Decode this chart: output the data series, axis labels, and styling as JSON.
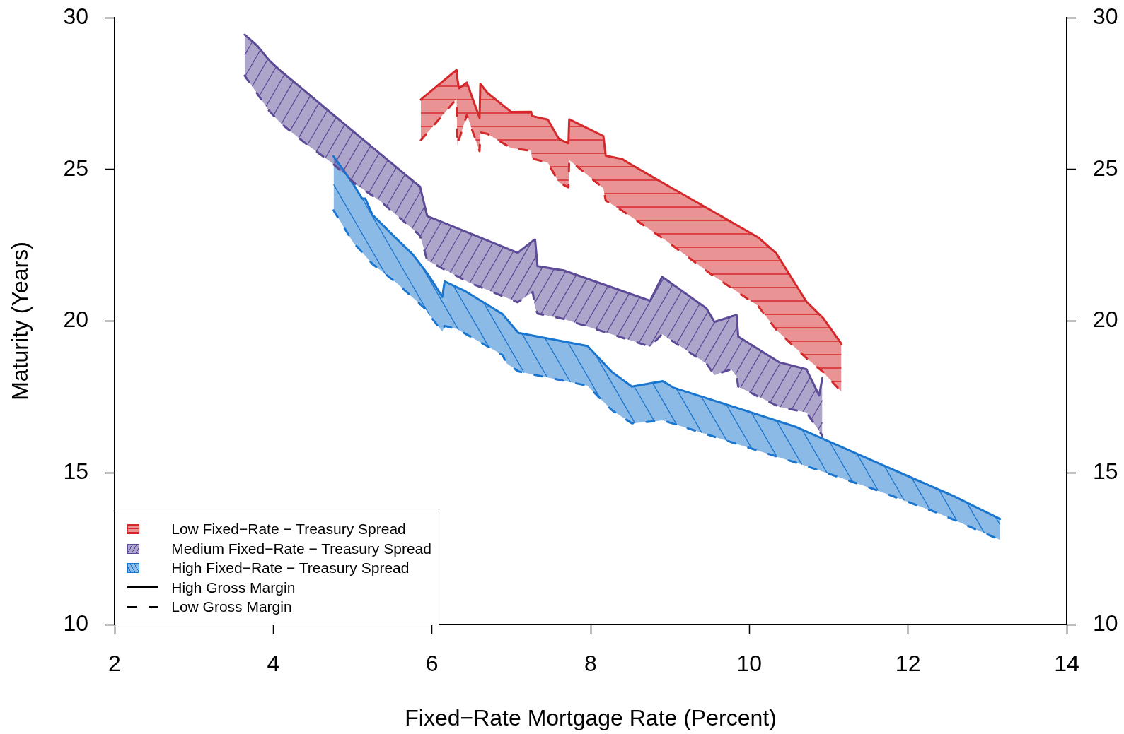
{
  "chart_data": {
    "type": "line",
    "xlabel": "Fixed−Rate Mortgage Rate (Percent)",
    "ylabel": "Maturity (Years)",
    "xlim": [
      2,
      14
    ],
    "xticks": [
      2,
      4,
      6,
      8,
      10,
      12,
      14
    ],
    "ylim": [
      10,
      30
    ],
    "yticks": [
      10,
      15,
      20,
      25,
      30
    ],
    "y2lim": [
      10,
      30
    ],
    "y2ticks": [
      10,
      15,
      20,
      25,
      30
    ],
    "legend": "bottom left",
    "marker": "none",
    "series": [
      {
        "name": "Low Fixed−Rate − Treasury Spread",
        "color": "#d5282b",
        "line_style": "solid",
        "x": [
          5.86,
          6.31,
          6.32,
          6.34,
          6.44,
          6.6,
          6.61,
          6.7,
          7.0,
          7.25,
          7.26,
          7.46,
          7.6,
          7.72,
          7.73,
          8.16,
          8.19,
          8.4,
          8.47,
          8.94,
          9.51,
          10.11,
          10.34,
          10.72,
          10.93,
          11.16
        ],
        "values": [
          27.3,
          28.28,
          28.0,
          27.67,
          27.86,
          26.7,
          27.82,
          27.52,
          26.89,
          26.9,
          26.76,
          26.64,
          26.0,
          25.86,
          26.65,
          26.1,
          25.45,
          25.34,
          25.22,
          24.51,
          23.66,
          22.76,
          22.23,
          20.64,
          20.1,
          19.25
        ],
        "upper": [
          27.3,
          28.28,
          28.0,
          27.67,
          27.86,
          26.7,
          27.82,
          27.52,
          26.89,
          26.9,
          26.76,
          26.64,
          26.0,
          25.86,
          26.65,
          26.1,
          25.45,
          25.34,
          25.22,
          24.51,
          23.66,
          22.76,
          22.23,
          20.64,
          20.1,
          19.25
        ],
        "lower": [
          25.96,
          27.32,
          25.8,
          25.97,
          26.8,
          25.6,
          26.22,
          26.17,
          25.7,
          25.61,
          25.36,
          25.22,
          24.57,
          24.41,
          25.31,
          24.38,
          23.97,
          23.64,
          23.51,
          22.67,
          21.56,
          20.5,
          19.71,
          18.78,
          18.32,
          17.67
        ]
      },
      {
        "color": "#d5282b",
        "line_style": "dashed",
        "x": [
          5.86,
          6.31,
          6.32,
          6.34,
          6.44,
          6.6,
          6.61,
          6.7,
          7.0,
          7.25,
          7.26,
          7.46,
          7.6,
          7.72,
          7.73,
          8.16,
          8.19,
          8.4,
          8.47,
          8.94,
          9.51,
          10.11,
          10.34,
          10.72,
          10.93,
          11.16
        ],
        "values": [
          25.96,
          27.32,
          25.8,
          25.97,
          26.8,
          25.6,
          26.22,
          26.17,
          25.7,
          25.61,
          25.36,
          25.22,
          24.57,
          24.41,
          25.31,
          24.38,
          23.97,
          23.64,
          23.51,
          22.67,
          21.56,
          20.5,
          19.71,
          18.78,
          18.32,
          17.67
        ]
      },
      {
        "name": "Medium Fixed−Rate − Treasury Spread",
        "color": "#5e4b97",
        "line_style": "solid",
        "x": [
          3.64,
          3.8,
          3.95,
          4.1,
          4.4,
          4.75,
          5.05,
          5.35,
          5.75,
          5.85,
          5.94,
          6.47,
          7.08,
          7.27,
          7.3,
          7.33,
          7.66,
          8.75,
          8.9,
          9.46,
          9.56,
          9.77,
          9.84,
          9.86,
          10.38,
          10.72,
          10.88,
          10.92
        ],
        "values": [
          29.44,
          29.07,
          28.59,
          28.23,
          27.58,
          26.81,
          26.16,
          25.51,
          24.64,
          24.43,
          23.46,
          22.9,
          22.25,
          22.64,
          22.69,
          21.81,
          21.67,
          20.67,
          21.46,
          20.42,
          19.97,
          20.15,
          20.2,
          19.49,
          18.64,
          18.41,
          17.55,
          18.12
        ],
        "upper": [
          29.44,
          29.07,
          28.59,
          28.23,
          27.58,
          26.81,
          26.16,
          25.51,
          24.64,
          24.43,
          23.46,
          22.9,
          22.25,
          22.64,
          22.69,
          21.81,
          21.67,
          20.67,
          21.46,
          20.42,
          19.97,
          20.15,
          20.2,
          19.49,
          18.64,
          18.41,
          17.55,
          18.12
        ],
        "lower": [
          28.09,
          27.49,
          26.92,
          26.51,
          25.87,
          25.19,
          24.49,
          23.95,
          23.05,
          22.81,
          22.0,
          21.27,
          20.62,
          20.96,
          20.45,
          20.25,
          20.07,
          19.16,
          19.57,
          18.6,
          18.22,
          18.41,
          18.18,
          17.84,
          17.17,
          16.99,
          16.38,
          16.22
        ]
      },
      {
        "color": "#5e4b97",
        "line_style": "dashed",
        "x": [
          3.64,
          3.8,
          3.95,
          4.1,
          4.4,
          4.75,
          5.05,
          5.35,
          5.75,
          5.85,
          5.94,
          6.47,
          7.08,
          7.27,
          7.3,
          7.33,
          7.66,
          8.75,
          8.9,
          9.46,
          9.56,
          9.77,
          9.84,
          9.86,
          10.38,
          10.72,
          10.88,
          10.92
        ],
        "values": [
          28.09,
          27.49,
          26.92,
          26.51,
          25.87,
          25.19,
          24.49,
          23.95,
          23.05,
          22.81,
          22.0,
          21.27,
          20.62,
          20.96,
          20.45,
          20.25,
          20.07,
          19.16,
          19.57,
          18.6,
          18.22,
          18.41,
          18.18,
          17.84,
          17.17,
          16.99,
          16.38,
          16.22
        ]
      },
      {
        "name": "High Fixed−Rate − Treasury Spread",
        "color": "#1a75cf",
        "line_style": "solid",
        "x": [
          4.76,
          5.01,
          5.12,
          5.16,
          5.25,
          5.55,
          5.76,
          5.91,
          5.96,
          6.13,
          6.16,
          6.32,
          6.41,
          6.74,
          6.89,
          6.94,
          7.09,
          7.96,
          8.13,
          8.27,
          8.52,
          8.91,
          9.04,
          9.88,
          10.58,
          10.71,
          11.57,
          12.36,
          12.56,
          13.16
        ],
        "values": [
          25.43,
          24.51,
          24.04,
          24.04,
          23.5,
          22.72,
          22.19,
          21.68,
          21.5,
          20.8,
          21.31,
          21.11,
          21.0,
          20.47,
          20.23,
          20.07,
          19.61,
          19.18,
          18.71,
          18.32,
          17.84,
          18.02,
          17.81,
          17.11,
          16.52,
          16.37,
          15.38,
          14.48,
          14.25,
          13.48
        ],
        "upper": [
          25.43,
          24.51,
          24.04,
          24.04,
          23.5,
          22.72,
          22.19,
          21.68,
          21.5,
          20.8,
          21.31,
          21.11,
          21.0,
          20.47,
          20.23,
          20.07,
          19.61,
          19.18,
          18.71,
          18.32,
          17.84,
          18.02,
          17.81,
          17.11,
          16.52,
          16.37,
          15.38,
          14.48,
          14.25,
          13.48
        ],
        "lower": [
          23.65,
          22.58,
          22.27,
          22.15,
          21.88,
          21.27,
          20.77,
          20.42,
          20.23,
          19.65,
          19.84,
          19.73,
          19.6,
          19.11,
          18.88,
          18.61,
          18.34,
          17.87,
          17.42,
          17.06,
          16.63,
          16.73,
          16.62,
          15.92,
          15.34,
          15.23,
          14.46,
          13.69,
          13.47,
          12.79
        ]
      },
      {
        "color": "#1a75cf",
        "line_style": "dashed",
        "x": [
          4.76,
          5.01,
          5.12,
          5.16,
          5.25,
          5.55,
          5.76,
          5.91,
          5.96,
          6.13,
          6.16,
          6.32,
          6.41,
          6.74,
          6.89,
          6.94,
          7.09,
          7.96,
          8.13,
          8.27,
          8.52,
          8.91,
          9.04,
          9.88,
          10.58,
          10.71,
          11.57,
          12.36,
          12.56,
          13.16
        ],
        "values": [
          23.65,
          22.58,
          22.27,
          22.15,
          21.88,
          21.27,
          20.77,
          20.42,
          20.23,
          19.65,
          19.84,
          19.73,
          19.6,
          19.11,
          18.88,
          18.61,
          18.34,
          17.87,
          17.42,
          17.06,
          16.63,
          16.73,
          16.62,
          15.92,
          15.34,
          15.23,
          14.46,
          13.69,
          13.47,
          12.79
        ]
      },
      {
        "name": "High Gross Margin",
        "color": "#000000",
        "line_style": "solid"
      },
      {
        "name": "Low Gross Margin",
        "color": "#000000",
        "line_style": "dashed"
      }
    ]
  }
}
